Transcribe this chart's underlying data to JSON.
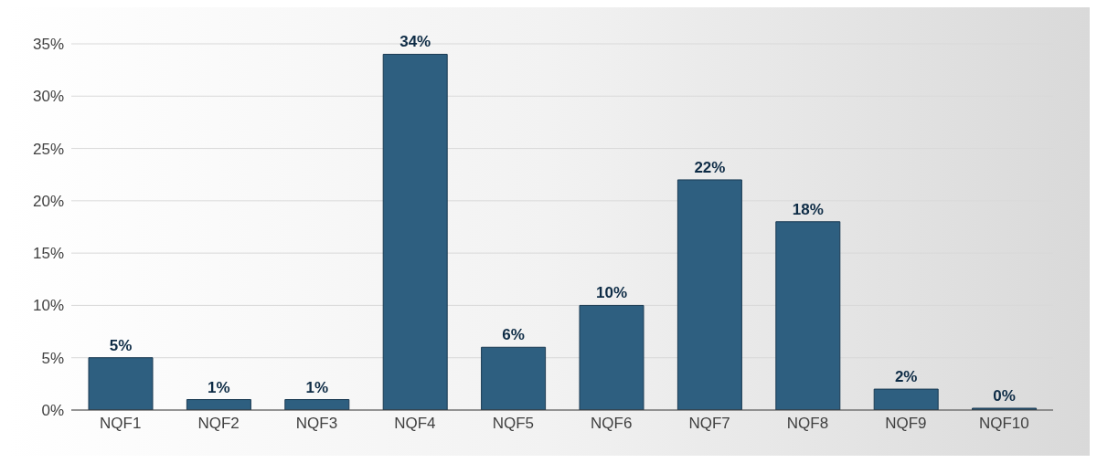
{
  "chart_data": {
    "type": "bar",
    "categories": [
      "NQF1",
      "NQF2",
      "NQF3",
      "NQF4",
      "NQF5",
      "NQF6",
      "NQF7",
      "NQF8",
      "NQF9",
      "NQF10"
    ],
    "values": [
      5,
      1,
      1,
      34,
      6,
      10,
      22,
      18,
      2,
      0
    ],
    "value_labels": [
      "5%",
      "1%",
      "1%",
      "34%",
      "6%",
      "10%",
      "22%",
      "18%",
      "2%",
      "0%"
    ],
    "color": "#2e5f80",
    "ylim": [
      0,
      35
    ],
    "yticks": [
      {
        "value": 0,
        "label": "0%"
      },
      {
        "value": 5,
        "label": "5%"
      },
      {
        "value": 10,
        "label": "10%"
      },
      {
        "value": 15,
        "label": "15%"
      },
      {
        "value": 20,
        "label": "20%"
      },
      {
        "value": 25,
        "label": "25%"
      },
      {
        "value": 30,
        "label": "30%"
      },
      {
        "value": 35,
        "label": "35%"
      }
    ],
    "grid": "y"
  }
}
